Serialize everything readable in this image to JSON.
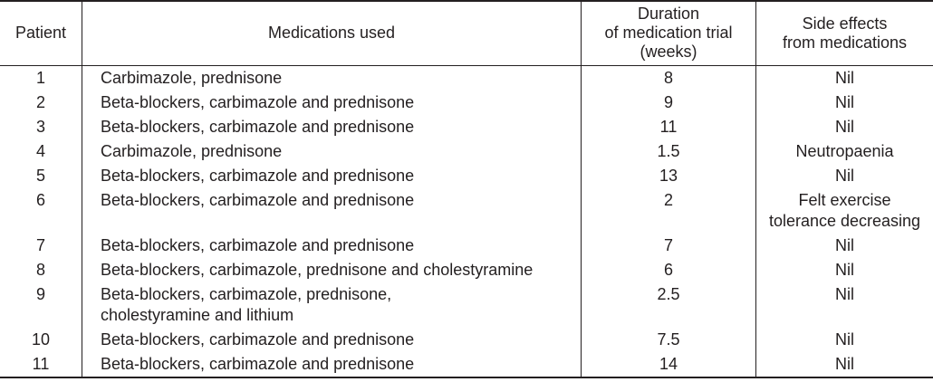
{
  "table": {
    "headers": [
      "Patient",
      "Medications used",
      "Duration of medication trial (weeks)",
      "Side effects from medications"
    ],
    "header_lines": {
      "duration": [
        "Duration",
        "of medication trial",
        "(weeks)"
      ],
      "side_effects": [
        "Side effects",
        "from medications"
      ]
    },
    "rows": [
      {
        "patient": "1",
        "medications": [
          "Carbimazole, prednisone"
        ],
        "duration": "8",
        "side_effects": [
          "Nil"
        ]
      },
      {
        "patient": "2",
        "medications": [
          "Beta-blockers, carbimazole and prednisone"
        ],
        "duration": "9",
        "side_effects": [
          "Nil"
        ]
      },
      {
        "patient": "3",
        "medications": [
          "Beta-blockers, carbimazole and prednisone"
        ],
        "duration": "11",
        "side_effects": [
          "Nil"
        ]
      },
      {
        "patient": "4",
        "medications": [
          "Carbimazole, prednisone"
        ],
        "duration": "1.5",
        "side_effects": [
          "Neutropaenia"
        ]
      },
      {
        "patient": "5",
        "medications": [
          "Beta-blockers, carbimazole and prednisone"
        ],
        "duration": "13",
        "side_effects": [
          "Nil"
        ]
      },
      {
        "patient": "6",
        "medications": [
          "Beta-blockers, carbimazole and prednisone"
        ],
        "duration": "2",
        "side_effects": [
          "Felt exercise",
          "tolerance decreasing"
        ]
      },
      {
        "patient": "7",
        "medications": [
          "Beta-blockers, carbimazole and prednisone"
        ],
        "duration": "7",
        "side_effects": [
          "Nil"
        ]
      },
      {
        "patient": "8",
        "medications": [
          "Beta-blockers, carbimazole, prednisone and cholestyramine"
        ],
        "duration": "6",
        "side_effects": [
          "Nil"
        ]
      },
      {
        "patient": "9",
        "medications": [
          "Beta-blockers, carbimazole, prednisone,",
          "cholestyramine and lithium"
        ],
        "duration": "2.5",
        "side_effects": [
          "Nil"
        ]
      },
      {
        "patient": "10",
        "medications": [
          "Beta-blockers, carbimazole and prednisone"
        ],
        "duration": "7.5",
        "side_effects": [
          "Nil"
        ]
      },
      {
        "patient": "11",
        "medications": [
          "Beta-blockers, carbimazole and prednisone"
        ],
        "duration": "14",
        "side_effects": [
          "Nil"
        ]
      }
    ]
  }
}
